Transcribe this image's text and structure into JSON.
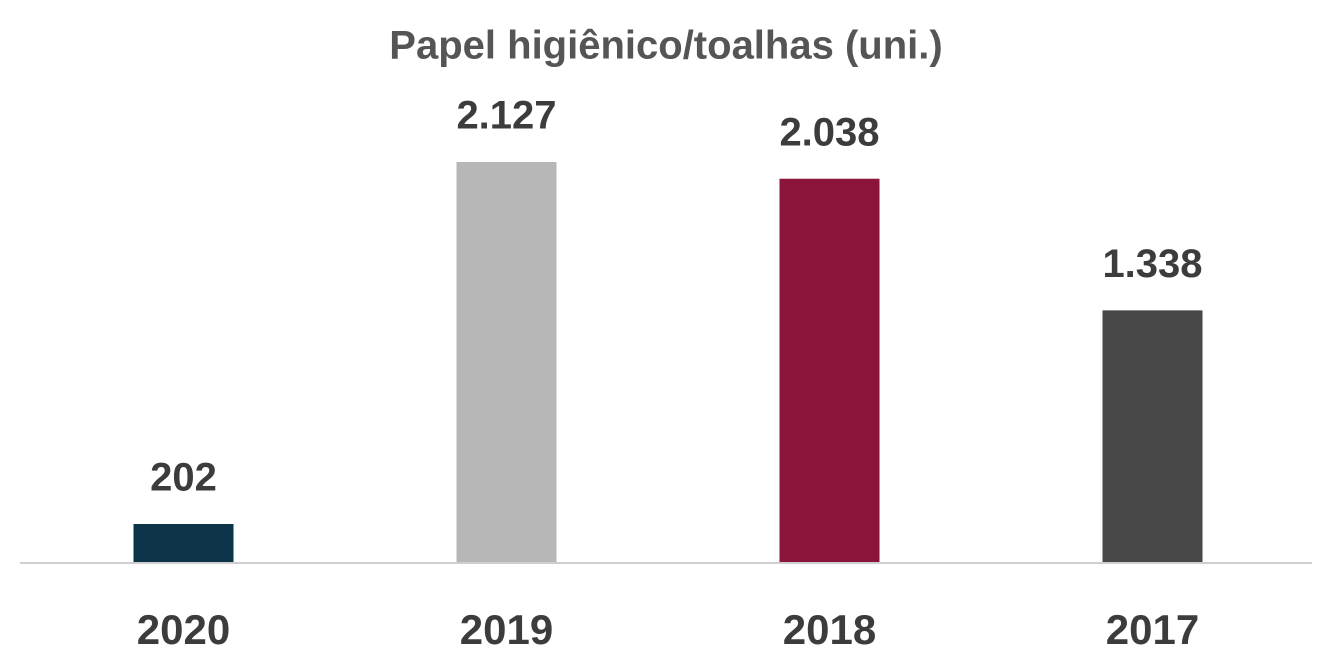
{
  "chart_data": {
    "type": "bar",
    "title": "Papel higiênico/toalhas (uni.)",
    "categories": [
      "2020",
      "2019",
      "2018",
      "2017"
    ],
    "values": [
      202,
      2127,
      2038,
      1338
    ],
    "value_labels": [
      "202",
      "2.127",
      "2.038",
      "1.338"
    ],
    "colors": [
      "#0c3347",
      "#b7b7b7",
      "#8a1538",
      "#474747"
    ]
  }
}
